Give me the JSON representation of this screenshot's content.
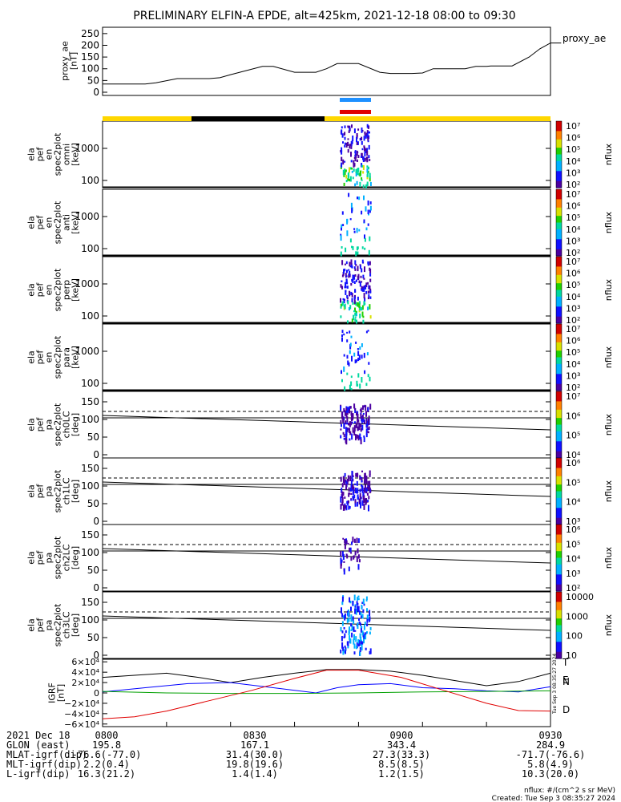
{
  "title": "PRELIMINARY ELFIN-A EPDE, alt=425km, 2021-12-18 08:00 to 09:30",
  "colors": {
    "bar_yellow": "#ffd700",
    "bar_black": "#000000",
    "blue_bar": "#1e90ff",
    "red_bar": "#e00000",
    "comp_T": "#000000",
    "comp_N": "#0000ff",
    "comp_E": "#00a000",
    "comp_D": "#e00000"
  },
  "chart_data": [
    {
      "type": "line",
      "id": "proxy_ae",
      "ylabel": [
        "proxy_ae",
        "[nT]"
      ],
      "legend": "proxy_ae",
      "ylim": [
        0,
        270
      ],
      "yticks": [
        "250",
        "200",
        "150",
        "100",
        "50",
        "0"
      ],
      "x_minutes": [
        0,
        20,
        25,
        35,
        50,
        55,
        60,
        75,
        80,
        90,
        100,
        105,
        110,
        120,
        130,
        135,
        145,
        150,
        155,
        170,
        175,
        180,
        182,
        192,
        200,
        205,
        210,
        215
      ],
      "values": [
        35,
        35,
        40,
        58,
        58,
        62,
        75,
        110,
        110,
        85,
        85,
        100,
        122,
        122,
        85,
        80,
        80,
        82,
        100,
        100,
        110,
        110,
        112,
        112,
        150,
        185,
        210,
        210
      ]
    },
    {
      "type": "heatmap",
      "id": "pef_omni",
      "ylabel": [
        "ela",
        "pef",
        "en",
        "spec2plot",
        "omni",
        "[keV]"
      ],
      "yticks": [
        "1000",
        "100"
      ],
      "colorbar": {
        "label": "nflux",
        "ticks": [
          "10⁷",
          "10⁶",
          "10⁵",
          "10⁴",
          "10³",
          "10²"
        ]
      }
    },
    {
      "type": "heatmap",
      "id": "pef_anti",
      "ylabel": [
        "ela",
        "pef",
        "en",
        "spec2plot",
        "anti",
        "[keV]"
      ],
      "yticks": [
        "1000",
        "100"
      ],
      "colorbar": {
        "label": "nflux",
        "ticks": [
          "10⁷",
          "10⁶",
          "10⁵",
          "10⁴",
          "10³",
          "10²"
        ]
      }
    },
    {
      "type": "heatmap",
      "id": "pef_perp",
      "ylabel": [
        "ela",
        "pef",
        "en",
        "spec2plot",
        "perp",
        "[keV]"
      ],
      "yticks": [
        "1000",
        "100"
      ],
      "colorbar": {
        "label": "nflux",
        "ticks": [
          "10⁷",
          "10⁶",
          "10⁵",
          "10⁴",
          "10³",
          "10²"
        ]
      }
    },
    {
      "type": "heatmap",
      "id": "pef_para",
      "ylabel": [
        "ela",
        "pef",
        "en",
        "spec2plot",
        "para",
        "[keV]"
      ],
      "yticks": [
        "1000",
        "100"
      ],
      "colorbar": {
        "label": "nflux",
        "ticks": [
          "10⁷",
          "10⁶",
          "10⁵",
          "10⁴",
          "10³",
          "10²"
        ]
      }
    },
    {
      "type": "heatmap",
      "id": "pa_ch0LC",
      "ylabel": [
        "ela",
        "pef",
        "pa",
        "spec2plot",
        "ch0LC",
        "[deg]"
      ],
      "yticks": [
        "150",
        "100",
        "50",
        "0"
      ],
      "colorbar": {
        "label": "nflux",
        "ticks": [
          "10⁷",
          "10⁶",
          "10⁵",
          "10⁴"
        ]
      }
    },
    {
      "type": "heatmap",
      "id": "pa_ch1LC",
      "ylabel": [
        "ela",
        "pef",
        "pa",
        "spec2plot",
        "ch1LC",
        "[deg]"
      ],
      "yticks": [
        "150",
        "100",
        "50",
        "0"
      ],
      "colorbar": {
        "label": "nflux",
        "ticks": [
          "10⁶",
          "10⁵",
          "10⁴",
          "10³"
        ]
      }
    },
    {
      "type": "heatmap",
      "id": "pa_ch2LC",
      "ylabel": [
        "ela",
        "pef",
        "pa",
        "spec2plot",
        "ch2LC",
        "[deg]"
      ],
      "yticks": [
        "150",
        "100",
        "50",
        "0"
      ],
      "colorbar": {
        "label": "nflux",
        "ticks": [
          "10⁶",
          "10⁵",
          "10⁴",
          "10³",
          "10²"
        ]
      }
    },
    {
      "type": "heatmap",
      "id": "pa_ch3LC",
      "ylabel": [
        "ela",
        "pef",
        "pa",
        "spec2plot",
        "ch3LC",
        "[deg]"
      ],
      "yticks": [
        "150",
        "100",
        "50",
        "0"
      ],
      "colorbar": {
        "label": "nflux",
        "ticks": [
          "10000",
          "1000",
          "100",
          "10"
        ]
      }
    },
    {
      "type": "line",
      "id": "igrf",
      "ylabel": [
        "IGRF",
        "[nT]"
      ],
      "ylim": [
        -65000,
        65000
      ],
      "yticks": [
        "6×10⁴",
        "4×10⁴",
        "2×10⁴",
        "0",
        "−2×10⁴",
        "−4×10⁴",
        "−6×10⁴"
      ],
      "series": [
        {
          "name": "T",
          "x": [
            0,
            30,
            45,
            60,
            75,
            90,
            105,
            120,
            135,
            150,
            165,
            180,
            195,
            210
          ],
          "values": [
            30000,
            38000,
            30000,
            20000,
            30000,
            38000,
            45000,
            45000,
            42000,
            34000,
            24000,
            14000,
            22000,
            38000
          ]
        },
        {
          "name": "N",
          "x": [
            0,
            20,
            40,
            60,
            80,
            90,
            100,
            110,
            120,
            135,
            150,
            165,
            180,
            195,
            210
          ],
          "values": [
            2000,
            10000,
            18000,
            20000,
            10000,
            5000,
            0,
            10000,
            16000,
            18000,
            10000,
            8000,
            4000,
            2000,
            12000
          ]
        },
        {
          "name": "E",
          "x": [
            0,
            30,
            60,
            90,
            120,
            150,
            180,
            210
          ],
          "values": [
            3000,
            0,
            -1000,
            -1000,
            0,
            2000,
            3000,
            4000
          ]
        },
        {
          "name": "D",
          "x": [
            0,
            15,
            30,
            50,
            70,
            90,
            105,
            120,
            140,
            160,
            180,
            195,
            210
          ],
          "values": [
            -50000,
            -46000,
            -35000,
            -15000,
            5000,
            28000,
            44000,
            44000,
            30000,
            5000,
            -20000,
            -34000,
            -35000
          ]
        }
      ]
    }
  ],
  "footer": {
    "date": "2021 Dec 18",
    "time_labels": [
      "0800",
      "0830",
      "0900",
      "0930"
    ],
    "rows": [
      {
        "label": "GLON (east)",
        "values": [
          "195.8",
          "167.1",
          "343.4",
          "284.9"
        ]
      },
      {
        "label": "MLAT-igrf(dip)",
        "values": [
          "-76.6(-77.0)",
          "31.4(30.0)",
          "27.3(33.3)",
          "-71.7(-76.6)"
        ]
      },
      {
        "label": "MLT-igrf(dip)",
        "values": [
          "2.2(0.4)",
          "19.8(19.6)",
          "8.5(8.5)",
          "5.8(4.9)"
        ]
      },
      {
        "label": "L-igrf(dip)",
        "values": [
          "16.3(21.2)",
          "1.4(1.4)",
          "1.2(1.5)",
          "10.3(20.0)"
        ]
      }
    ],
    "units": "nflux: #/(cm^2 s sr MeV)",
    "created": "Created: Tue Sep  3 08:35:27 2024"
  },
  "side_stamp": "Tue Sep  3 08:35:27 2024"
}
